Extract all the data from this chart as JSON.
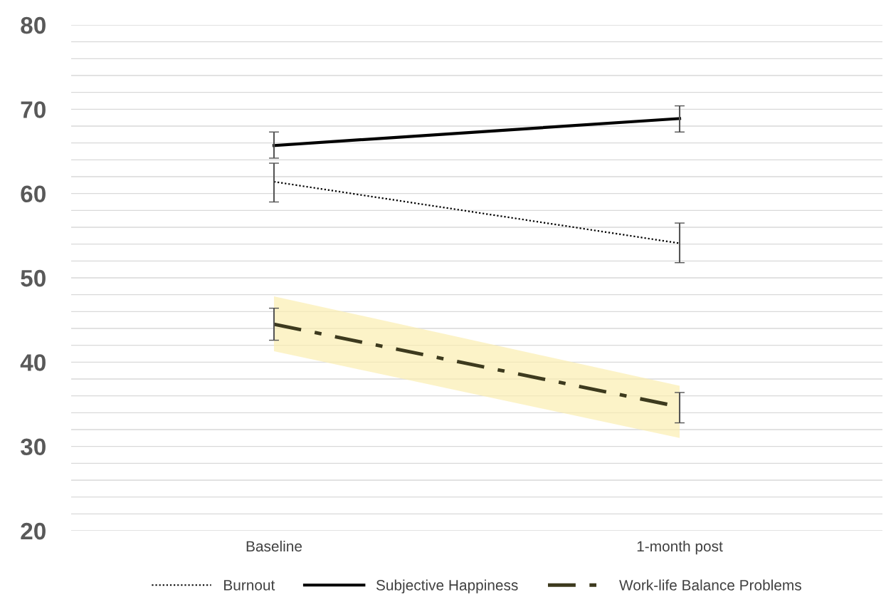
{
  "chart_data": {
    "type": "line",
    "categories": [
      "Baseline",
      "1-month post"
    ],
    "series": [
      {
        "name": "Burnout",
        "color": "#000000",
        "line_style": "dotted",
        "values": [
          61.4,
          54.1
        ],
        "errors": [
          [
            59.0,
            63.6
          ],
          [
            51.8,
            56.5
          ]
        ]
      },
      {
        "name": "Subjective Happiness",
        "color": "#000000",
        "line_style": "solid",
        "values": [
          65.7,
          68.9
        ],
        "errors": [
          [
            64.2,
            67.3
          ],
          [
            67.3,
            70.4
          ]
        ]
      },
      {
        "name": "Work-life Balance Problems",
        "color": "#3d3a1e",
        "line_style": "dashdot",
        "values": [
          44.5,
          34.7
        ],
        "errors": [
          [
            42.6,
            46.4
          ],
          [
            32.8,
            36.4
          ]
        ],
        "lower": [
          41.3,
          31.0
        ],
        "upper": [
          47.8,
          37.2
        ]
      }
    ],
    "ylim": [
      20,
      80
    ],
    "yticks": [
      20,
      {
        "value": 22,
        "label": null
      },
      {
        "value": 24,
        "label": null
      },
      {
        "value": 26,
        "label": null
      },
      {
        "value": 28,
        "label": null
      },
      30,
      {
        "value": 32,
        "label": null
      },
      {
        "value": 34,
        "label": null
      },
      {
        "value": 36,
        "label": null
      },
      {
        "value": 38,
        "label": null
      },
      40,
      {
        "value": 42,
        "label": null
      },
      {
        "value": 44,
        "label": null
      },
      {
        "value": 46,
        "label": null
      },
      {
        "value": 48,
        "label": null
      },
      50,
      {
        "value": 52,
        "label": null
      },
      {
        "value": 54,
        "label": null
      },
      {
        "value": 56,
        "label": null
      },
      {
        "value": 58,
        "label": null
      },
      60,
      {
        "value": 62,
        "label": null
      },
      {
        "value": 64,
        "label": null
      },
      {
        "value": 66,
        "label": null
      },
      {
        "value": 68,
        "label": null
      },
      70,
      {
        "value": 72,
        "label": null
      },
      {
        "value": 74,
        "label": null
      },
      {
        "value": 76,
        "label": null
      },
      {
        "value": 78,
        "label": null
      },
      80
    ],
    "grid": "y",
    "legend": "bottom",
    "marker": "none"
  }
}
